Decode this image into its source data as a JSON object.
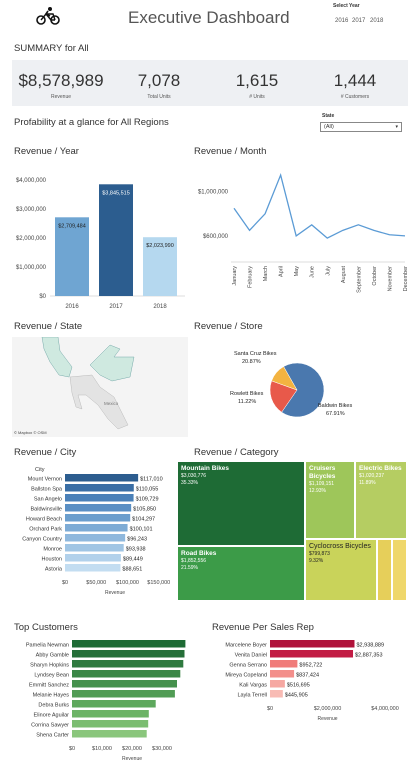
{
  "header": {
    "title": "Executive Dashboard",
    "year_label": "Select Year",
    "years": [
      "2016",
      "2017",
      "2018"
    ]
  },
  "summary": {
    "title": "SUMMARY for All",
    "kpis": [
      {
        "value": "$8,578,989",
        "label": "Revenue"
      },
      {
        "value": "7,078",
        "label": "Total Units"
      },
      {
        "value": "1,615",
        "label": "# Units"
      },
      {
        "value": "1,444",
        "label": "# Customers"
      }
    ]
  },
  "profitability_title": "Profability at a glance for All  Regions",
  "state_filter": {
    "label": "State",
    "value": "(All)"
  },
  "colors": {
    "blue_dark": "#2c5d8f",
    "blue_mid": "#6fa5d2",
    "blue_light": "#b5d8ef",
    "green_dark": "#1e7b3a",
    "green_mid": "#7bbf4a",
    "green_light": "#b5d37a",
    "crimson": "#b0123a",
    "salmon": "#f3a09c"
  },
  "map": {
    "title": "Revenue / State",
    "credit": "© Mapbox © OSM",
    "label_mexico": "Mexico"
  },
  "chart_data": [
    {
      "id": "revenue_year",
      "type": "bar",
      "title": "Revenue / Year",
      "categories": [
        "2016",
        "2017",
        "2018"
      ],
      "values": [
        2709484,
        3845515,
        2023990
      ],
      "data_labels": [
        "$2,709,484",
        "$3,845,515",
        "$2,023,990"
      ],
      "yticks": [
        0,
        1000000,
        2000000,
        3000000,
        4000000
      ],
      "ytick_labels": [
        "$0",
        "$1,000,000",
        "$2,000,000",
        "$3,000,000",
        "$4,000,000"
      ],
      "ylim": [
        0,
        4200000
      ]
    },
    {
      "id": "revenue_month",
      "type": "line",
      "title": "Revenue / Month",
      "categories": [
        "January",
        "February",
        "March",
        "April",
        "May",
        "June",
        "July",
        "August",
        "September",
        "October",
        "November",
        "December"
      ],
      "values": [
        850000,
        650000,
        800000,
        1150000,
        600000,
        700000,
        580000,
        650000,
        700000,
        650000,
        610000,
        600000
      ],
      "yticks": [
        600000,
        1000000
      ],
      "ytick_labels": [
        "$600,000",
        "$1,000,000"
      ],
      "ylim": [
        400000,
        1250000
      ]
    },
    {
      "id": "revenue_store",
      "type": "pie",
      "title": "Revenue / Store",
      "labels": [
        "Baldwin Bikes",
        "Santa Cruz Bikes",
        "Rowlett Bikes"
      ],
      "values": [
        67.91,
        20.87,
        11.22
      ],
      "pct_labels": [
        "67.91%",
        "20.87%",
        "11.22%"
      ],
      "colors": [
        "#4a78ae",
        "#e8594a",
        "#f3b341"
      ]
    },
    {
      "id": "revenue_city",
      "type": "bar",
      "orientation": "horizontal",
      "title": "Revenue / City",
      "axis_header": "City",
      "categories": [
        "Mount Vernon",
        "Ballston Spa",
        "San Angelo",
        "Baldwinsville",
        "Howard Beach",
        "Orchard Park",
        "Canyon Country",
        "Monroe",
        "Houston",
        "Astoria"
      ],
      "values": [
        117010,
        110055,
        109729,
        105850,
        104297,
        100101,
        96243,
        93938,
        89449,
        88651
      ],
      "data_labels": [
        "$117,010",
        "$110,055",
        "$109,729",
        "$105,850",
        "$104,297",
        "$100,101",
        "$96,243",
        "$93,938",
        "$89,449",
        "$88,651"
      ],
      "xticks": [
        0,
        50000,
        100000,
        150000
      ],
      "xtick_labels": [
        "$0",
        "$50,000",
        "$100,000",
        "$150,000"
      ],
      "xlabel": "Revenue",
      "xlim": [
        0,
        160000
      ]
    },
    {
      "id": "revenue_category",
      "type": "treemap",
      "title": "Revenue / Category",
      "items": [
        {
          "name": "Mountain Bikes",
          "value": "$3,030,776",
          "pct": "35.33%"
        },
        {
          "name": "Road Bikes",
          "value": "$1,852,556",
          "pct": "21.59%"
        },
        {
          "name": "Cruisers Bicycles",
          "value": "$1,109,151",
          "pct": "12.93%"
        },
        {
          "name": "Electric Bikes",
          "value": "$1,020,237",
          "pct": "11.89%"
        },
        {
          "name": "Cyclocross Bicycles",
          "value": "$799,873",
          "pct": "9.32%"
        }
      ]
    },
    {
      "id": "top_customers",
      "type": "bar",
      "orientation": "horizontal",
      "title": "Top Customers",
      "categories": [
        "Pamelia Newman",
        "Abby Gamble",
        "Sharyn Hopkins",
        "Lyndsey Bean",
        "Emmitt Sanchez",
        "Melanie Hayes",
        "Debra Burks",
        "Elinore Aguilar",
        "Corrina Sawyer",
        "Shena Carter"
      ],
      "values": [
        37800,
        37500,
        37100,
        36100,
        35000,
        34300,
        27900,
        25600,
        25400,
        24900
      ],
      "xticks": [
        0,
        10000,
        20000,
        30000
      ],
      "xtick_labels": [
        "$0",
        "$10,000",
        "$20,000",
        "$30,000"
      ],
      "xlabel": "Revenue",
      "xlim": [
        0,
        40000
      ]
    },
    {
      "id": "revenue_rep",
      "type": "bar",
      "orientation": "horizontal",
      "title": "Revenue Per Sales Rep",
      "categories": [
        "Marcelene Boyer",
        "Venita Daniel",
        "Genna Serrano",
        "Mireya Copeland",
        "Kali Vargas",
        "Layla Terrell"
      ],
      "values": [
        2938889,
        2887353,
        952722,
        837424,
        516695,
        445905
      ],
      "data_labels": [
        "$2,938,889",
        "$2,887,353",
        "$952,722",
        "$837,424",
        "$516,695",
        "$445,905"
      ],
      "xticks": [
        0,
        2000000,
        4000000
      ],
      "xtick_labels": [
        "$0",
        "$2,000,000",
        "$4,000,000"
      ],
      "xlabel": "Revenue",
      "xlim": [
        0,
        4000000
      ]
    }
  ]
}
